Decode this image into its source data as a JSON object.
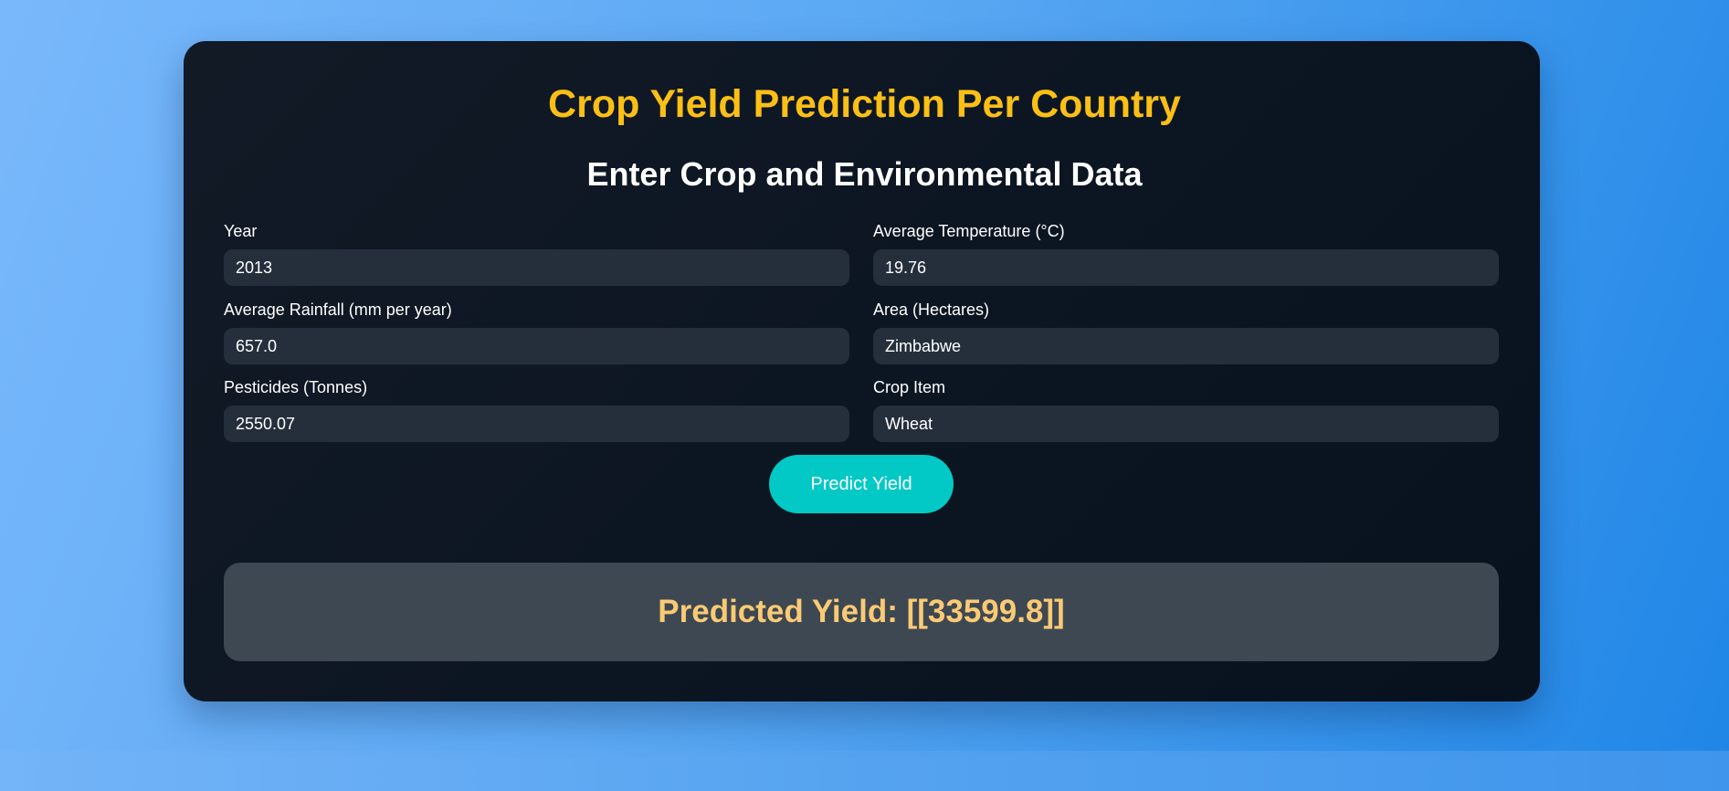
{
  "header": {
    "title": "Crop Yield Prediction Per Country",
    "subtitle": "Enter Crop and Environmental Data"
  },
  "form": {
    "year": {
      "label": "Year",
      "value": "2013"
    },
    "avg_temp": {
      "label": "Average Temperature (°C)",
      "value": "19.76"
    },
    "avg_rainfall": {
      "label": "Average Rainfall (mm per year)",
      "value": "657.0"
    },
    "area": {
      "label": "Area (Hectares)",
      "value": "Zimbabwe"
    },
    "pesticides": {
      "label": "Pesticides (Tonnes)",
      "value": "2550.07"
    },
    "crop_item": {
      "label": "Crop Item",
      "value": "Wheat"
    }
  },
  "actions": {
    "predict_label": "Predict Yield"
  },
  "result": {
    "text": "Predicted Yield: [[33599.8]]"
  },
  "colors": {
    "title": "#fbbf16",
    "button": "#02c9c5",
    "result_text": "#fbca74",
    "card_bg": "#0c1622",
    "input_bg": "#252f3c"
  }
}
